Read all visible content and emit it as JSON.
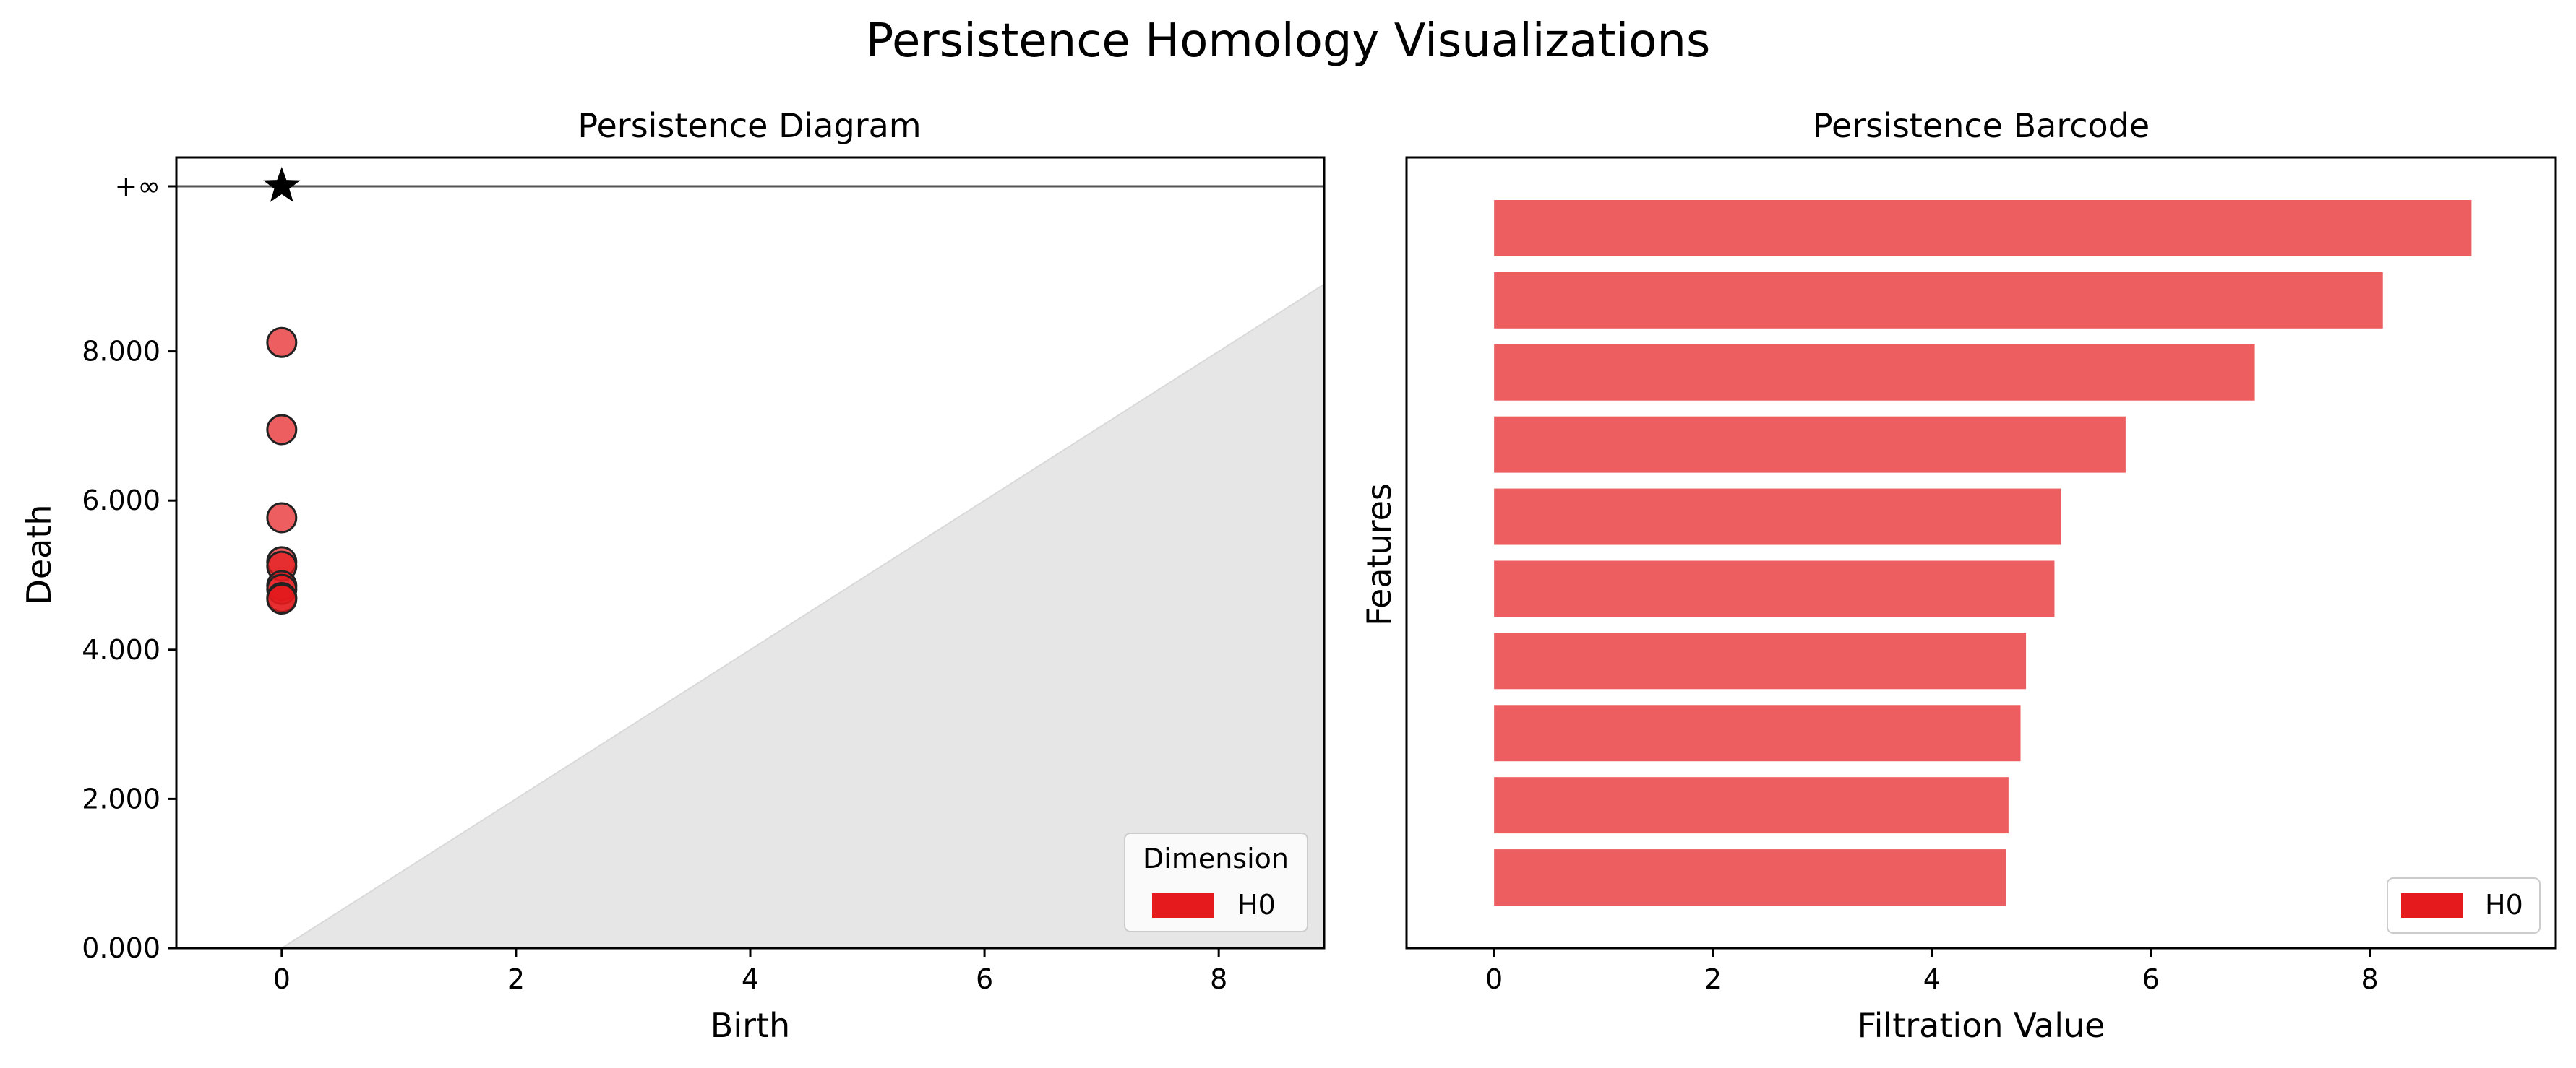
{
  "figure": {
    "title": "Persistence Homology Visualizations"
  },
  "chart_data": [
    {
      "type": "scatter",
      "title": "Persistence Diagram",
      "xlabel": "Birth",
      "ylabel": "Death",
      "xlim": [
        -0.9,
        8.9
      ],
      "ylim": [
        0,
        10.6
      ],
      "xticks": [
        "0",
        "2",
        "4",
        "6",
        "8"
      ],
      "yticks": [
        "0.000",
        "2.000",
        "4.000",
        "6.000",
        "8.000",
        "+∞"
      ],
      "infinity_label": "+∞",
      "series": [
        {
          "name": "H0",
          "color": "#e41a1c",
          "points": [
            {
              "birth": 0,
              "death": 8.12
            },
            {
              "birth": 0,
              "death": 6.95
            },
            {
              "birth": 0,
              "death": 5.77
            },
            {
              "birth": 0,
              "death": 5.18
            },
            {
              "birth": 0,
              "death": 5.12
            },
            {
              "birth": 0,
              "death": 4.86
            },
            {
              "birth": 0,
              "death": 4.81
            },
            {
              "birth": 0,
              "death": 4.7
            },
            {
              "birth": 0,
              "death": 4.68
            }
          ],
          "infinite_points": [
            {
              "birth": 0,
              "death": "+∞"
            }
          ]
        }
      ],
      "legend": {
        "title": "Dimension",
        "entries": [
          "H0"
        ],
        "position": "lower-right"
      },
      "grid": false
    },
    {
      "type": "bar",
      "orientation": "horizontal",
      "title": "Persistence Barcode",
      "xlabel": "Filtration Value",
      "ylabel": "Features",
      "xlim": [
        -0.8,
        9.7
      ],
      "xticks": [
        "0",
        "2",
        "4",
        "6",
        "8"
      ],
      "series": [
        {
          "name": "H0",
          "color": "#e41a1c",
          "bars": [
            {
              "start": 0,
              "end": 8.93
            },
            {
              "start": 0,
              "end": 8.12
            },
            {
              "start": 0,
              "end": 6.95
            },
            {
              "start": 0,
              "end": 5.77
            },
            {
              "start": 0,
              "end": 5.18
            },
            {
              "start": 0,
              "end": 5.12
            },
            {
              "start": 0,
              "end": 4.86
            },
            {
              "start": 0,
              "end": 4.81
            },
            {
              "start": 0,
              "end": 4.7
            },
            {
              "start": 0,
              "end": 4.68
            }
          ]
        }
      ],
      "legend": {
        "entries": [
          "H0"
        ],
        "position": "lower-right"
      },
      "grid": false
    }
  ]
}
